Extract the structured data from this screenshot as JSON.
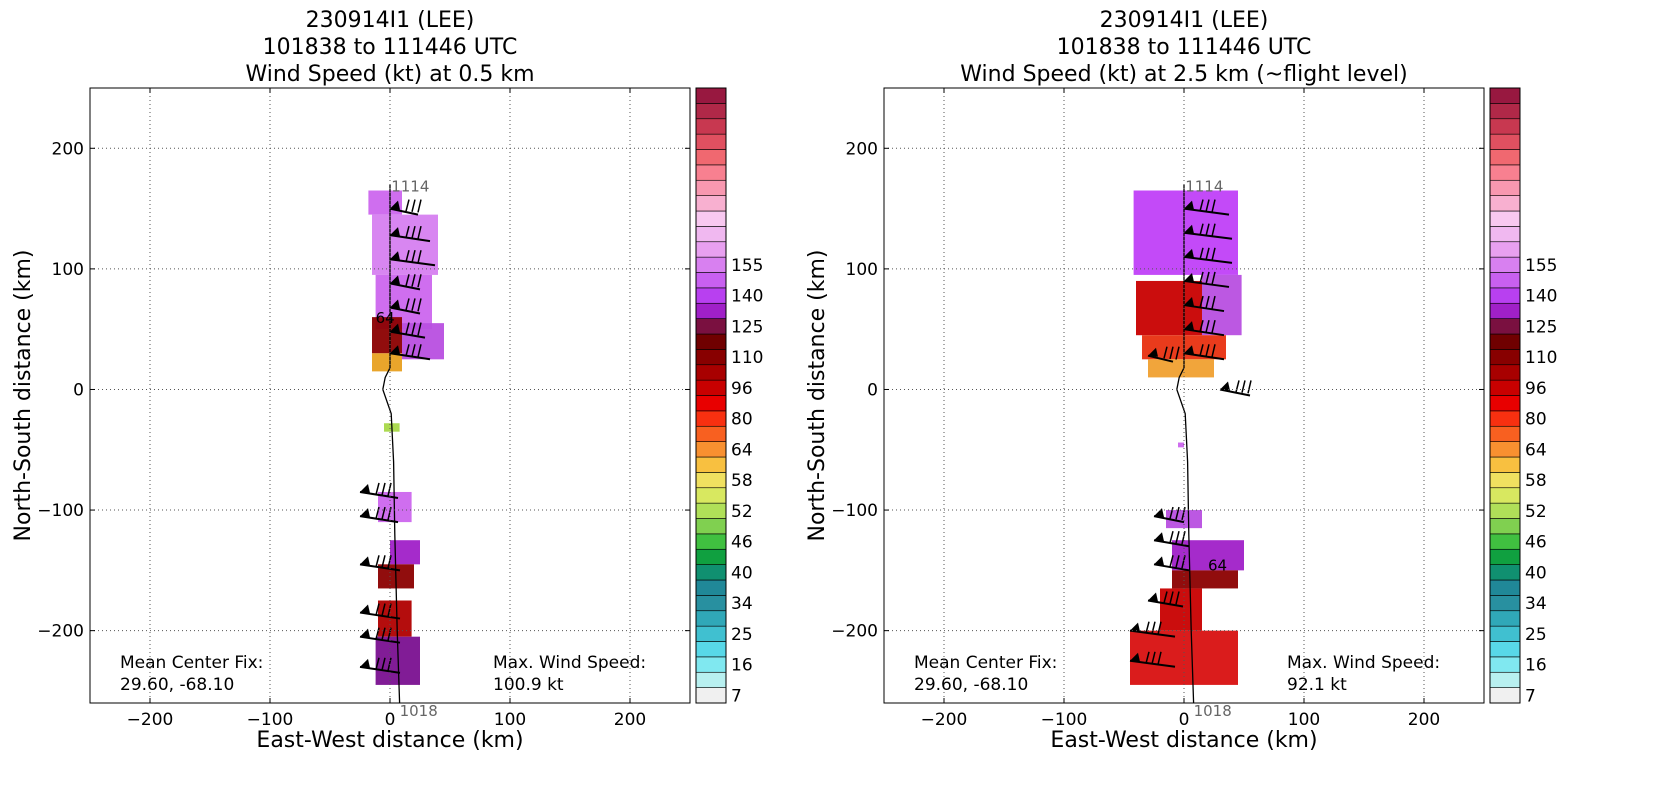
{
  "chart_data": [
    {
      "type": "heatmap",
      "title_lines": [
        "230914I1 (LEE)",
        "101838 to 111446 UTC",
        "Wind Speed (kt) at 0.5 km"
      ],
      "xlabel": "East-West distance (km)",
      "ylabel": "North-South distance (km)",
      "xlim": [
        -250,
        250
      ],
      "ylim": [
        -260,
        250
      ],
      "xticks": [
        -200,
        -100,
        0,
        100,
        200
      ],
      "yticks": [
        -200,
        -100,
        0,
        100,
        200
      ],
      "grid": true,
      "track_labels": {
        "end": "1114",
        "start": "1018"
      },
      "contour_label": "64",
      "center_fix": {
        "label": "Mean Center Fix:",
        "value": "29.60, -68.10"
      },
      "max_wind": {
        "label": "Max. Wind Speed:",
        "value": "100.9 kt"
      },
      "patches": [
        {
          "x0": -18,
          "y0": 145,
          "x1": 10,
          "y1": 165,
          "color": "#cc66ee"
        },
        {
          "x0": -15,
          "y0": 95,
          "x1": 40,
          "y1": 145,
          "color": "#d680f0"
        },
        {
          "x0": -12,
          "y0": 50,
          "x1": 35,
          "y1": 95,
          "color": "#cc66ee"
        },
        {
          "x0": -15,
          "y0": 30,
          "x1": 10,
          "y1": 60,
          "color": "#8b0000"
        },
        {
          "x0": 10,
          "y0": 25,
          "x1": 45,
          "y1": 55,
          "color": "#b84fe0"
        },
        {
          "x0": -15,
          "y0": 15,
          "x1": 10,
          "y1": 30,
          "color": "#e8a020"
        },
        {
          "x0": -5,
          "y0": -35,
          "x1": 8,
          "y1": -28,
          "color": "#a8d848"
        },
        {
          "x0": -10,
          "y0": -110,
          "x1": 18,
          "y1": -85,
          "color": "#cc66ee"
        },
        {
          "x0": 0,
          "y0": -145,
          "x1": 25,
          "y1": -125,
          "color": "#a020c8"
        },
        {
          "x0": -10,
          "y0": -165,
          "x1": 20,
          "y1": -145,
          "color": "#8b0000"
        },
        {
          "x0": -10,
          "y0": -205,
          "x1": 18,
          "y1": -175,
          "color": "#b00000"
        },
        {
          "x0": -12,
          "y0": -245,
          "x1": 25,
          "y1": -205,
          "color": "#7a1090"
        }
      ],
      "barbs": [
        {
          "x": 0,
          "y": 150,
          "len": 28
        },
        {
          "x": 0,
          "y": 128,
          "len": 40
        },
        {
          "x": 0,
          "y": 108,
          "len": 45
        },
        {
          "x": 0,
          "y": 88,
          "len": 30
        },
        {
          "x": 0,
          "y": 68,
          "len": 30
        },
        {
          "x": 0,
          "y": 48,
          "len": 35
        },
        {
          "x": 0,
          "y": 30,
          "len": 40
        },
        {
          "x": -25,
          "y": -85,
          "len": 38
        },
        {
          "x": -25,
          "y": -105,
          "len": 38
        },
        {
          "x": -25,
          "y": -145,
          "len": 40
        },
        {
          "x": -25,
          "y": -185,
          "len": 40
        },
        {
          "x": -25,
          "y": -205,
          "len": 40
        },
        {
          "x": -25,
          "y": -230,
          "len": 40
        }
      ]
    },
    {
      "type": "heatmap",
      "title_lines": [
        "230914I1 (LEE)",
        "101838 to 111446 UTC",
        "Wind Speed (kt) at 2.5 km (~flight level)"
      ],
      "xlabel": "East-West distance (km)",
      "ylabel": "North-South distance (km)",
      "xlim": [
        -250,
        250
      ],
      "ylim": [
        -260,
        250
      ],
      "xticks": [
        -200,
        -100,
        0,
        100,
        200
      ],
      "yticks": [
        -200,
        -100,
        0,
        100,
        200
      ],
      "grid": true,
      "track_labels": {
        "end": "1114",
        "start": "1018"
      },
      "contour_label": "64",
      "center_fix": {
        "label": "Mean Center Fix:",
        "value": "29.60, -68.10"
      },
      "max_wind": {
        "label": "Max. Wind Speed:",
        "value": "92.1 kt"
      },
      "patches": [
        {
          "x0": -42,
          "y0": 95,
          "x1": 45,
          "y1": 165,
          "color": "#c040f8"
        },
        {
          "x0": 15,
          "y0": 45,
          "x1": 48,
          "y1": 95,
          "color": "#b84fe0"
        },
        {
          "x0": -40,
          "y0": 45,
          "x1": 15,
          "y1": 90,
          "color": "#c80000"
        },
        {
          "x0": -35,
          "y0": 25,
          "x1": 35,
          "y1": 45,
          "color": "#e83010"
        },
        {
          "x0": -30,
          "y0": 10,
          "x1": 25,
          "y1": 25,
          "color": "#f0a030"
        },
        {
          "x0": -5,
          "y0": -48,
          "x1": 0,
          "y1": -44,
          "color": "#cc66ee"
        },
        {
          "x0": -15,
          "y0": -115,
          "x1": 15,
          "y1": -100,
          "color": "#b84fe0"
        },
        {
          "x0": -10,
          "y0": -150,
          "x1": 50,
          "y1": -125,
          "color": "#a020c8"
        },
        {
          "x0": -10,
          "y0": -165,
          "x1": 45,
          "y1": -150,
          "color": "#8b0000"
        },
        {
          "x0": -20,
          "y0": -200,
          "x1": 15,
          "y1": -165,
          "color": "#c80000"
        },
        {
          "x0": -45,
          "y0": -245,
          "x1": 45,
          "y1": -200,
          "color": "#d81010"
        }
      ],
      "barbs": [
        {
          "x": 0,
          "y": 150,
          "len": 45
        },
        {
          "x": 0,
          "y": 130,
          "len": 48
        },
        {
          "x": 0,
          "y": 110,
          "len": 48
        },
        {
          "x": 0,
          "y": 90,
          "len": 45
        },
        {
          "x": 0,
          "y": 70,
          "len": 40
        },
        {
          "x": 0,
          "y": 50,
          "len": 40
        },
        {
          "x": 0,
          "y": 30,
          "len": 40
        },
        {
          "x": -30,
          "y": 28,
          "len": 25
        },
        {
          "x": 30,
          "y": 0,
          "len": 30
        },
        {
          "x": -25,
          "y": -105,
          "len": 30
        },
        {
          "x": -25,
          "y": -125,
          "len": 35
        },
        {
          "x": -25,
          "y": -145,
          "len": 35
        },
        {
          "x": -30,
          "y": -175,
          "len": 35
        },
        {
          "x": -45,
          "y": -200,
          "len": 45
        },
        {
          "x": -45,
          "y": -225,
          "len": 45
        }
      ]
    }
  ],
  "colorbar": {
    "tick_labels": [
      "7",
      "16",
      "25",
      "34",
      "40",
      "46",
      "52",
      "58",
      "64",
      "80",
      "96",
      "110",
      "125",
      "140",
      "155"
    ],
    "colors": [
      "#f0f0f0",
      "#b8f0f0",
      "#80e8f0",
      "#58d8e8",
      "#40c0d0",
      "#30a8b8",
      "#2890a0",
      "#208898",
      "#109070",
      "#10a040",
      "#40c040",
      "#80d050",
      "#b0e058",
      "#d8e860",
      "#f0e060",
      "#f8c040",
      "#f89030",
      "#f86020",
      "#f83010",
      "#e80000",
      "#c80000",
      "#a80000",
      "#880000",
      "#700000",
      "#7a1040",
      "#a020c8",
      "#b840f0",
      "#c860f0",
      "#d880f0",
      "#e8a0f0",
      "#f0b8f0",
      "#f8c8f0",
      "#f8b0d0",
      "#f898b0",
      "#f88090",
      "#f06870",
      "#e05060",
      "#c83850",
      "#b02848",
      "#981840"
    ]
  }
}
